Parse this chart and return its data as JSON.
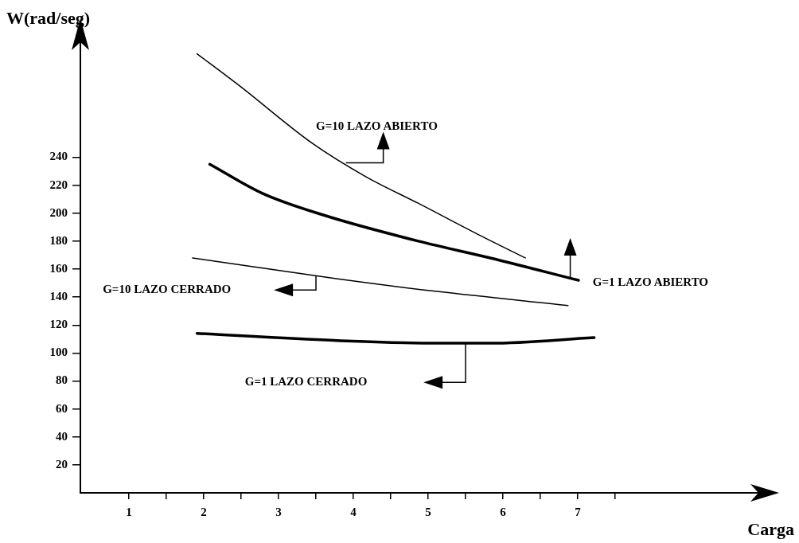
{
  "chart_data": {
    "type": "line",
    "xlabel": "Carga",
    "ylabel": "W(rad/seg)",
    "xlim": [
      0.35,
      9.65
    ],
    "ylim": [
      0,
      320
    ],
    "xticks": [
      1,
      {
        "value": 1.5,
        "label": null
      },
      2,
      {
        "value": 2.5,
        "label": null
      },
      3,
      {
        "value": 3.5,
        "label": null
      },
      4,
      {
        "value": 4.5,
        "label": null
      },
      5,
      {
        "value": 5.5,
        "label": null
      },
      6,
      {
        "value": 6.5,
        "label": null
      },
      7,
      {
        "value": 7.5,
        "label": null
      }
    ],
    "yticks": [
      20,
      40,
      60,
      80,
      100,
      120,
      140,
      160,
      180,
      200,
      220,
      240
    ],
    "grid": false,
    "legend": false,
    "marker": "none",
    "line_style": "solid",
    "series": [
      {
        "name": "G=10 LAZO ABIERTO",
        "color": "#000000",
        "x": [
          1.91,
          2.48,
          3.45,
          4.17,
          4.87,
          5.66,
          6.3
        ],
        "values": [
          314,
          291,
          250,
          226,
          207,
          185,
          168
        ]
      },
      {
        "name": "G=1 LAZO ABIERTO",
        "color": "#000000",
        "x": [
          2.08,
          2.79,
          3.64,
          4.87,
          5.83,
          7.01
        ],
        "values": [
          235,
          214,
          198,
          180,
          168,
          152
        ]
      },
      {
        "name": "G=10 LAZO CERRADO",
        "color": "#000000",
        "x": [
          1.85,
          3.79,
          5.12,
          6.87
        ],
        "values": [
          168,
          153,
          144,
          134
        ]
      },
      {
        "name": "G=1 LAZO CERRADO",
        "color": "#000000",
        "x": [
          1.91,
          3.74,
          5.12,
          5.83,
          7.22
        ],
        "values": [
          114,
          109,
          107,
          107,
          111
        ]
      }
    ]
  }
}
